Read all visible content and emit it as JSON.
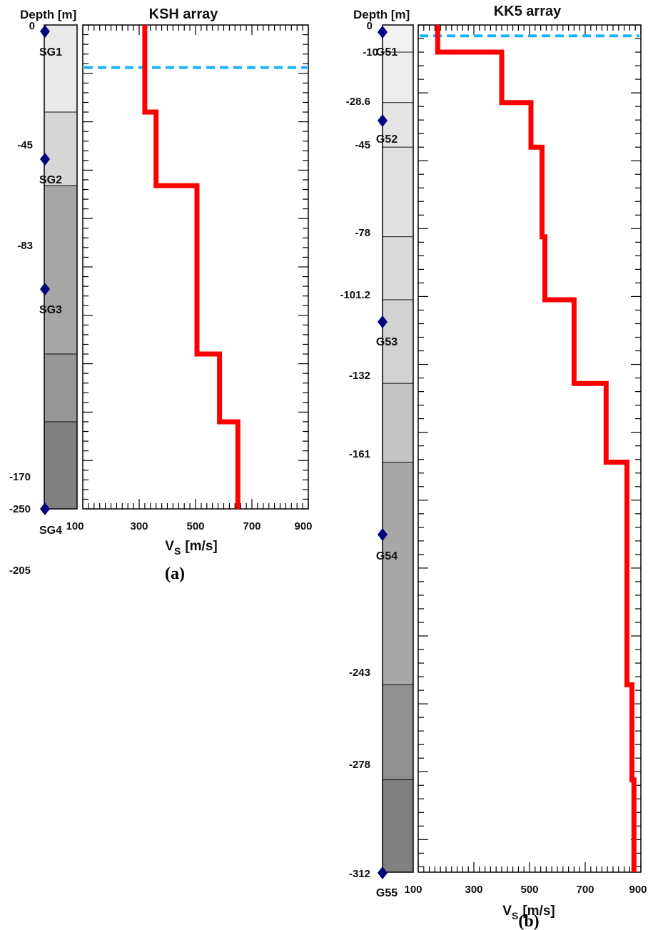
{
  "figure": {
    "panels": [
      {
        "id": "a",
        "caption": "(a)",
        "depth_axis_label": "Depth [m]",
        "layer_boundary_labels": [
          "0",
          "-45",
          "-83",
          "-170",
          "-205",
          "-250"
        ],
        "layers": [
          {
            "top": 0,
            "bottom": 45,
            "shade": "#e9e9e9"
          },
          {
            "top": 45,
            "bottom": 83,
            "shade": "#d6d6d6"
          },
          {
            "top": 83,
            "bottom": 170,
            "shade": "#a6a6a6"
          },
          {
            "top": 170,
            "bottom": 205,
            "shade": "#969696"
          },
          {
            "top": 205,
            "bottom": 250,
            "shade": "#808080"
          }
        ],
        "sensors": [
          {
            "name": "SG1",
            "depth": 2
          },
          {
            "name": "SG2",
            "depth": 50
          },
          {
            "name": "SG3",
            "depth": 100
          },
          {
            "name": "SG4",
            "depth": 250
          }
        ]
      },
      {
        "id": "b",
        "caption": "(b)",
        "depth_axis_label": "Depth [m]",
        "layer_boundary_labels": [
          "0",
          "-10",
          "-28.6",
          "-45",
          "-78",
          "-101.2",
          "-132",
          "-161",
          "-243",
          "-278",
          "-312"
        ],
        "layers": [
          {
            "top": 0,
            "bottom": 10,
            "shade": "#f2f2f2"
          },
          {
            "top": 10,
            "bottom": 28.6,
            "shade": "#ececec"
          },
          {
            "top": 28.6,
            "bottom": 45,
            "shade": "#e5e5e5"
          },
          {
            "top": 45,
            "bottom": 78,
            "shade": "#e0e0e0"
          },
          {
            "top": 78,
            "bottom": 101.2,
            "shade": "#dadada"
          },
          {
            "top": 101.2,
            "bottom": 132,
            "shade": "#d2d2d2"
          },
          {
            "top": 132,
            "bottom": 161,
            "shade": "#c4c4c4"
          },
          {
            "top": 161,
            "bottom": 243,
            "shade": "#a8a8a8"
          },
          {
            "top": 243,
            "bottom": 278,
            "shade": "#909090"
          },
          {
            "top": 278,
            "bottom": 312,
            "shade": "#808080"
          }
        ],
        "sensors": [
          {
            "name": "G51",
            "depth": 2
          },
          {
            "name": "G52",
            "depth": 35
          },
          {
            "name": "G53",
            "depth": 114
          },
          {
            "name": "G54",
            "depth": 195
          },
          {
            "name": "G55",
            "depth": 312
          }
        ]
      }
    ],
    "colors": {
      "profile": "#ff0000",
      "water_table": "#1ab2ff",
      "sensor": "#000080"
    }
  },
  "chart_data": [
    {
      "type": "line",
      "title": "KSH array",
      "xlabel_main": "V",
      "xlabel_sub": "S",
      "xlabel_units": "[m/s]",
      "ylabel": "",
      "xlim": [
        100,
        900
      ],
      "ylim": [
        0,
        250
      ],
      "x_ticks": [
        "100",
        "300",
        "500",
        "700",
        "900"
      ],
      "water_table_depth": 22,
      "series": [
        {
          "x": [
            320,
            320,
            360,
            360,
            505,
            505,
            585,
            585,
            650,
            650
          ],
          "y": [
            0,
            45,
            45,
            83,
            83,
            170,
            170,
            205,
            205,
            250
          ]
        }
      ]
    },
    {
      "type": "line",
      "title": "KK5 array",
      "xlabel_main": "V",
      "xlabel_sub": "S",
      "xlabel_units": "[m/s]",
      "ylabel": "",
      "xlim": [
        100,
        900
      ],
      "ylim": [
        0,
        312
      ],
      "x_ticks": [
        "100",
        "300",
        "500",
        "700",
        "900"
      ],
      "water_table_depth": 4,
      "series": [
        {
          "x": [
            170,
            170,
            400,
            400,
            505,
            505,
            545,
            545,
            555,
            555,
            660,
            660,
            775,
            775,
            850,
            850,
            868,
            868,
            875,
            875
          ],
          "y": [
            0,
            10,
            10,
            28.6,
            28.6,
            45,
            45,
            78,
            78,
            101.2,
            101.2,
            132,
            132,
            161,
            161,
            243,
            243,
            278,
            278,
            312
          ]
        }
      ]
    }
  ]
}
